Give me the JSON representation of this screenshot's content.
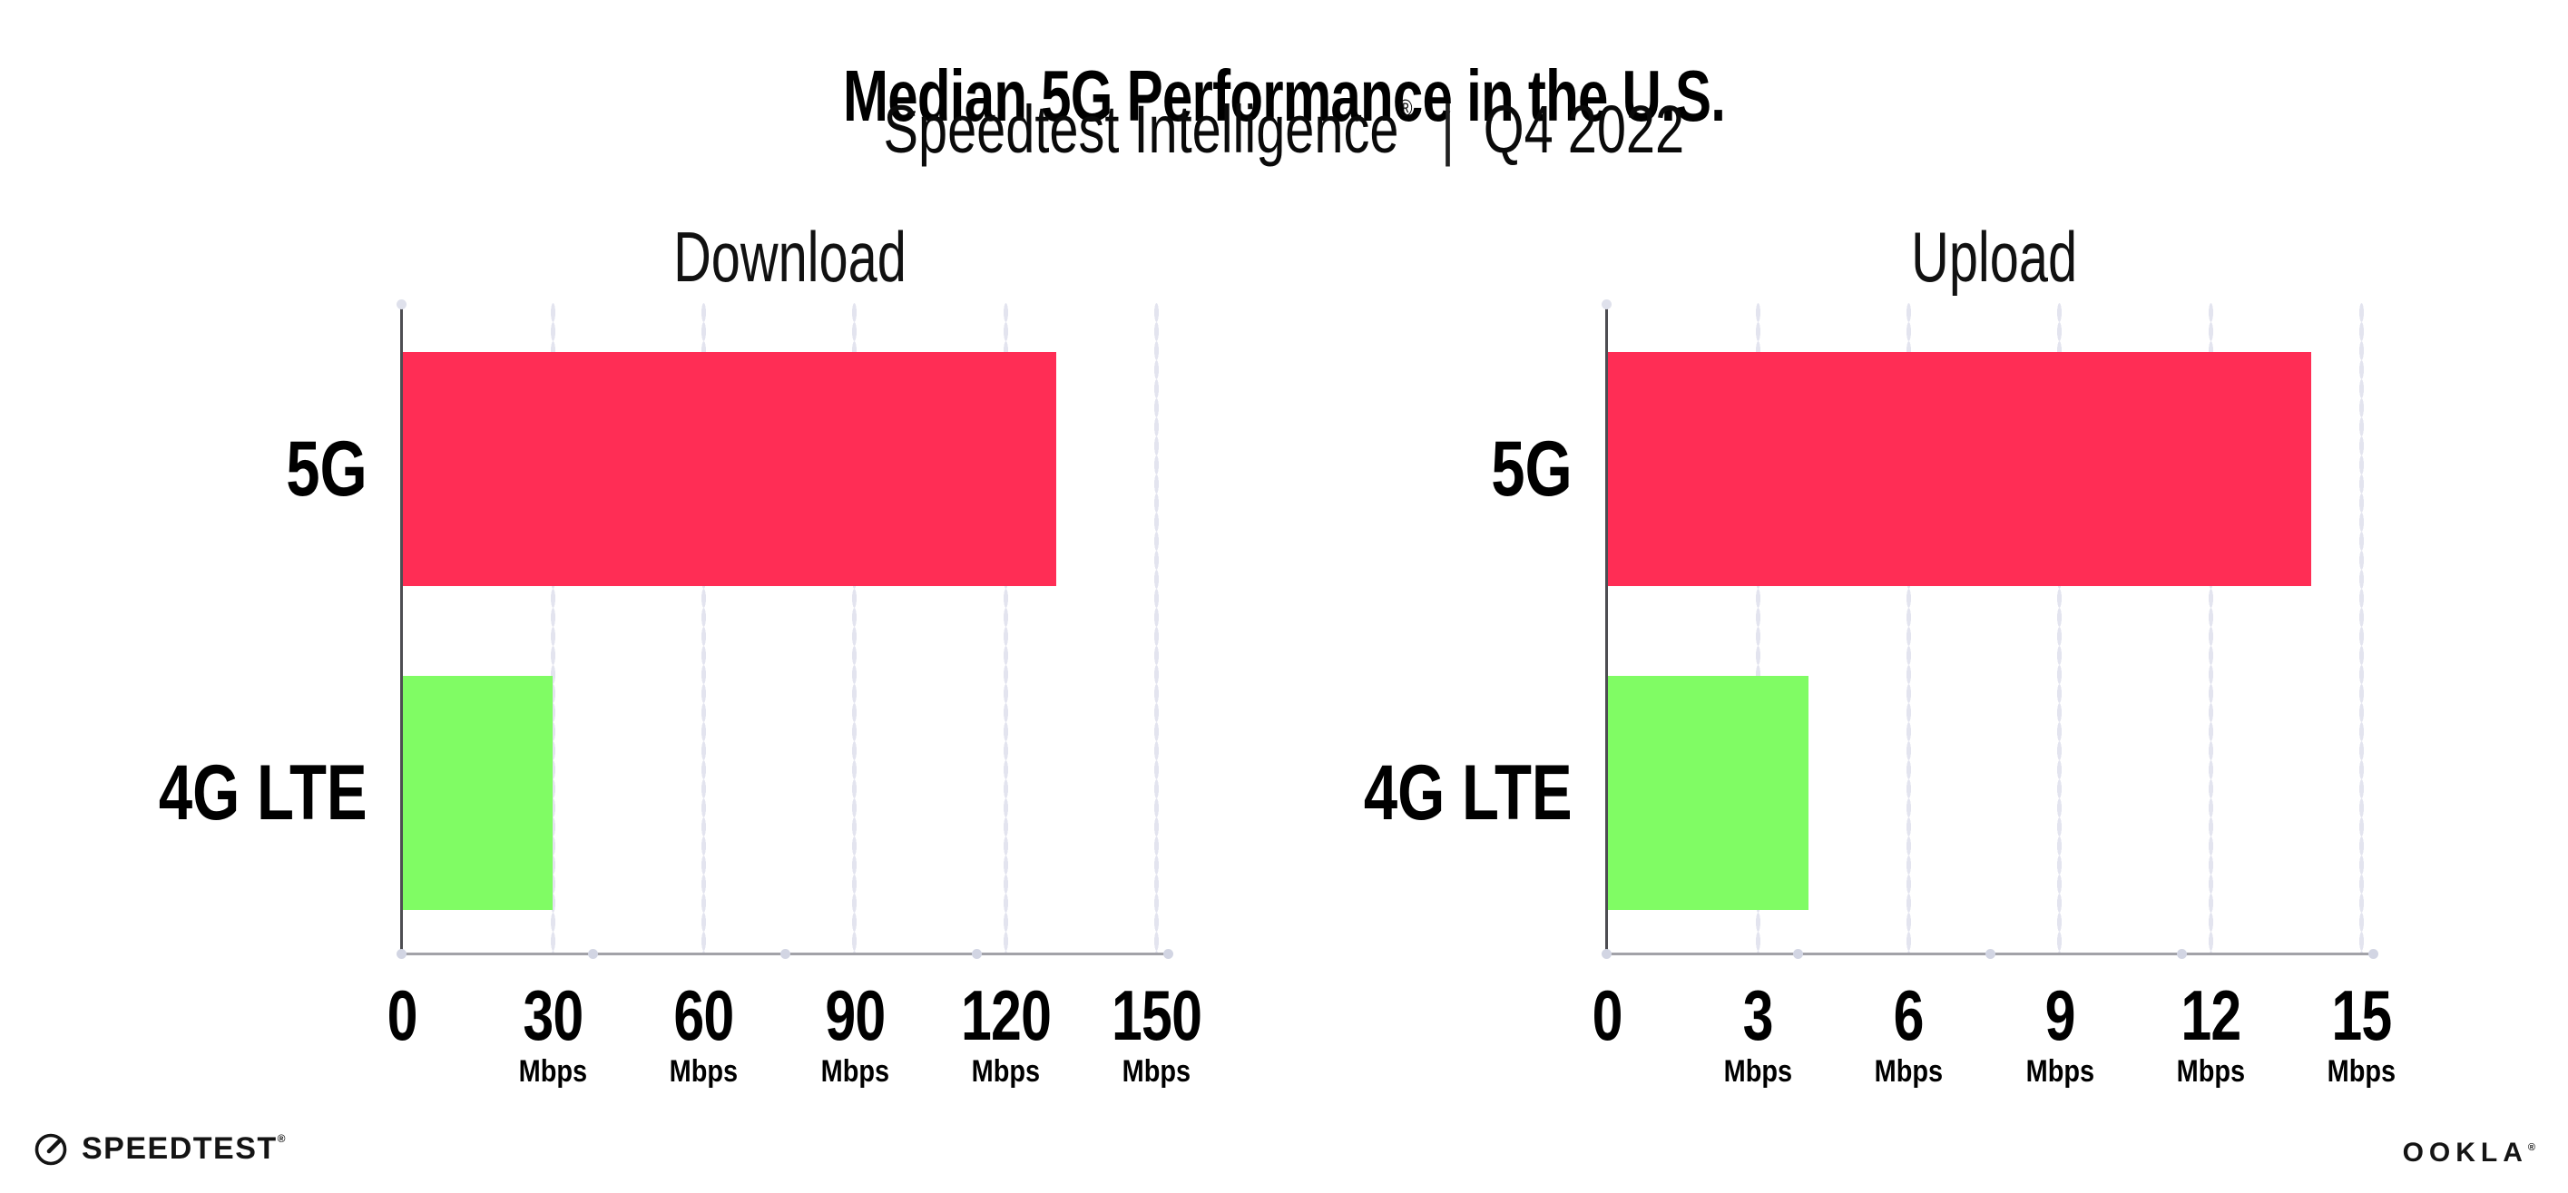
{
  "header": {
    "title": "Median 5G Performance in the U.S.",
    "subtitle": {
      "product": "Speedtest Intelligence",
      "registered": "®",
      "separator": "|",
      "period": "Q4 2022"
    }
  },
  "colors": {
    "bar_5g": "#FF2D55",
    "bar_4g_lte": "#80FC64",
    "axis_line": "#a2a2a8",
    "value_axis_line": "#4d4d52",
    "gridline_dots": "#e3e4ef",
    "text": "#000000"
  },
  "chart_data": [
    {
      "type": "bar",
      "orientation": "horizontal",
      "title": "Download",
      "categories": [
        "5G",
        "4G LTE"
      ],
      "values": [
        130,
        30
      ],
      "unit": "Mbps",
      "xlim": [
        0,
        150
      ],
      "xticks": [
        0,
        30,
        60,
        90,
        120,
        150
      ],
      "xtick_unit_label": "Mbps",
      "grid": "dotted-vertical",
      "legend": "none",
      "bar_colors": [
        "#FF2D55",
        "#80FC64"
      ]
    },
    {
      "type": "bar",
      "orientation": "horizontal",
      "title": "Upload",
      "categories": [
        "5G",
        "4G LTE"
      ],
      "values": [
        14,
        4
      ],
      "unit": "Mbps",
      "xlim": [
        0,
        15
      ],
      "xticks": [
        0,
        3,
        6,
        9,
        12,
        15
      ],
      "xtick_unit_label": "Mbps",
      "grid": "dotted-vertical",
      "legend": "none",
      "bar_colors": [
        "#FF2D55",
        "#80FC64"
      ]
    }
  ],
  "footer": {
    "speedtest_label": "SPEEDTEST",
    "speedtest_mark": "®",
    "ookla_label": "OOKLA",
    "ookla_mark": "®"
  }
}
